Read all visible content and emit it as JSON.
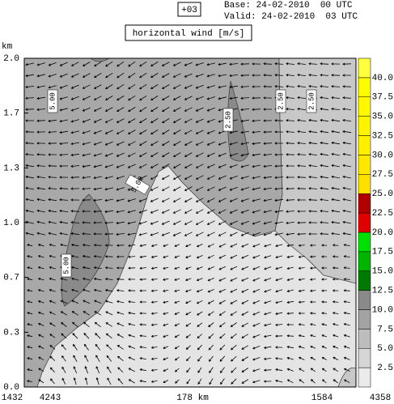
{
  "chart_data": {
    "type": "contour",
    "forecast_hour": "+03",
    "base": "Base: 24-02-2010  00 UTC",
    "valid": "Valid: 24-02-2010  03 UTC",
    "title": "horizontal wind [m/s]",
    "ylabel": "km",
    "ylim": [
      0,
      2
    ],
    "yticks": [
      {
        "value": 0,
        "label": "0.0"
      },
      {
        "value": 0.333,
        "label": "0.3"
      },
      {
        "value": 0.667,
        "label": "0.7"
      },
      {
        "value": 1,
        "label": "1.0"
      },
      {
        "value": 1.333,
        "label": "1.3"
      },
      {
        "value": 1.667,
        "label": "1.7"
      },
      {
        "value": 2,
        "label": "2.0"
      }
    ],
    "x_labels": [
      "1432",
      "4243",
      "178 km",
      "1584",
      "4358"
    ],
    "contour_labels": [
      "5.00",
      "2.50",
      "2.50",
      "2.50",
      "5.00",
      "5.00"
    ],
    "colorbar": {
      "lim": [
        0,
        42.5
      ],
      "ticks": [
        2.5,
        {
          "value": 5,
          "label": "5.0"
        },
        7.5,
        {
          "value": 10,
          "label": "10.0"
        },
        12.5,
        {
          "value": 15,
          "label": "15.0"
        },
        17.5,
        {
          "value": 20,
          "label": "20.0"
        },
        22.5,
        {
          "value": 25,
          "label": "25.0"
        },
        27.5,
        {
          "value": 30,
          "label": "30.0"
        },
        32.5,
        {
          "value": 35,
          "label": "35.0"
        },
        37.5,
        {
          "value": 40,
          "label": "40.0"
        }
      ],
      "colors": [
        "#ebebeb",
        "#d6d6d6",
        "#bdbdbd",
        "#a3a3a3",
        "#8a8a8a",
        "#007a00",
        "#00b400",
        "#00e000",
        "#e00000",
        "#b00000",
        "#ffe000",
        "#ffe800",
        "#fff000",
        "#fff400",
        "#fff800",
        "#fffb00",
        "#ffff40"
      ]
    }
  }
}
